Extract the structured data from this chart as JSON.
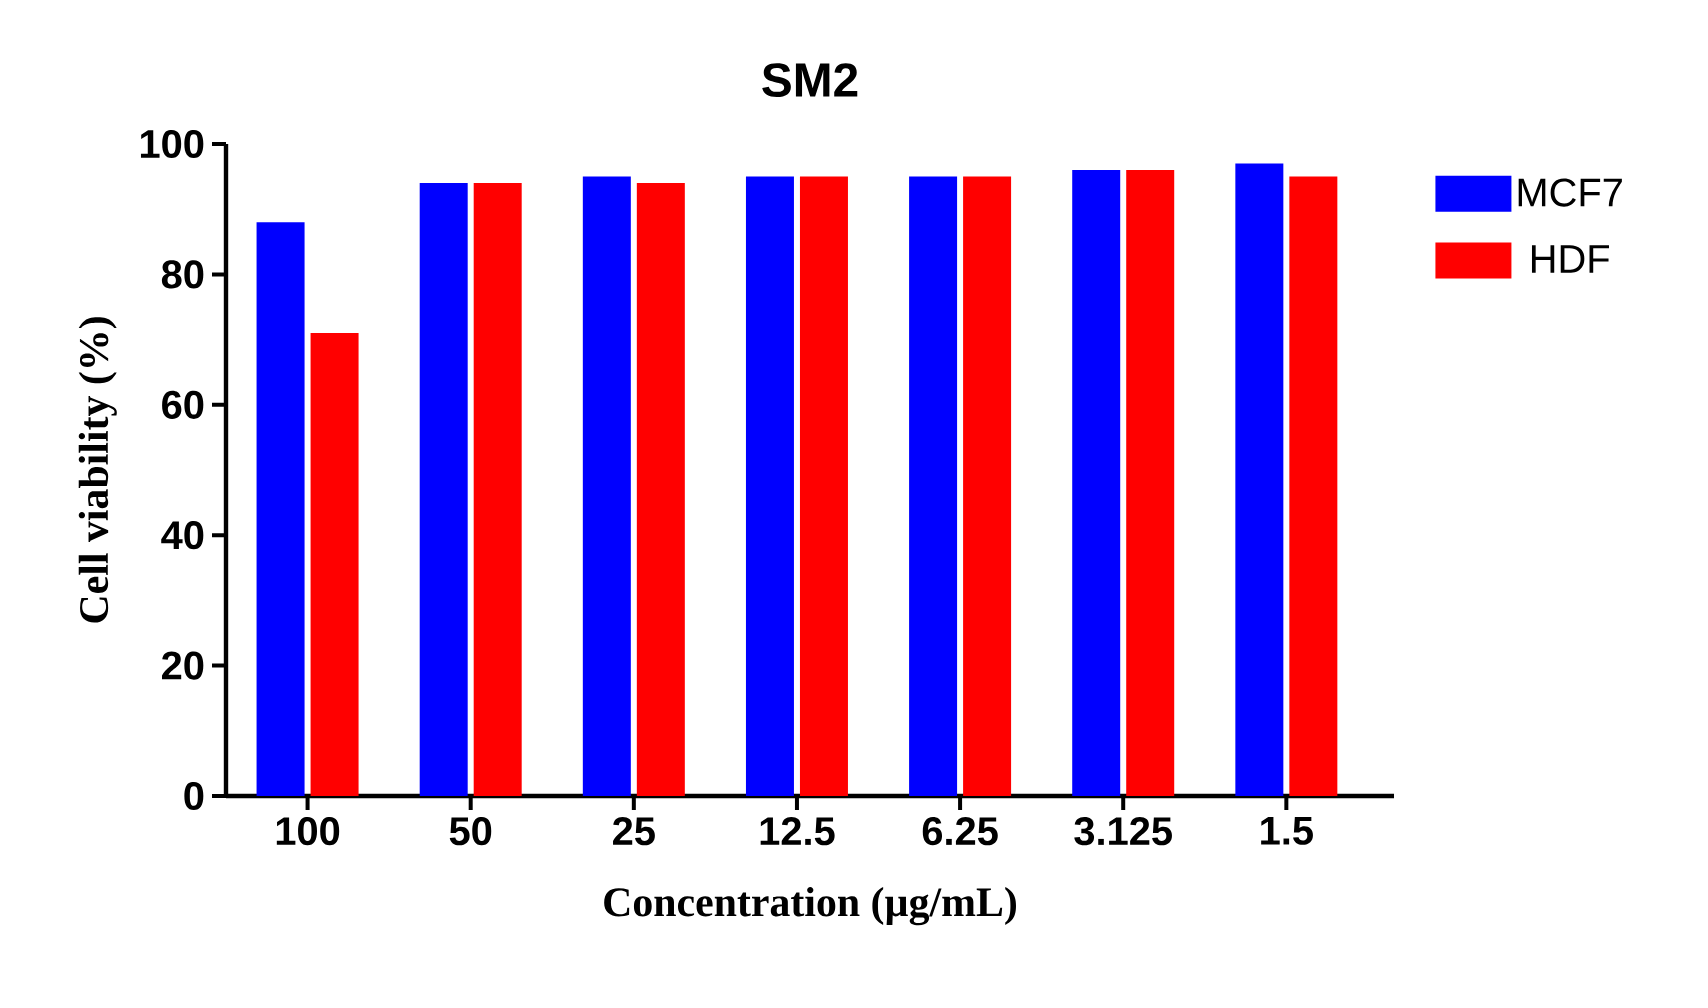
{
  "chart_data": {
    "type": "bar",
    "title": "SM2",
    "xlabel": "Concentration (µg/mL)",
    "ylabel": "Cell viability (%)",
    "categories": [
      "100",
      "50",
      "25",
      "12.5",
      "6.25",
      "3.125",
      "1.5"
    ],
    "series": [
      {
        "name": "MCF7",
        "color": "#0000ff",
        "values": [
          88,
          94,
          95,
          95,
          95,
          96,
          97
        ]
      },
      {
        "name": "HDF",
        "color": "#ff0000",
        "values": [
          71,
          94,
          94,
          95,
          95,
          96,
          95
        ]
      }
    ],
    "ylim": [
      0,
      100
    ],
    "yticks": [
      0,
      20,
      40,
      60,
      80,
      100
    ],
    "grid": false,
    "legend": "top right"
  }
}
